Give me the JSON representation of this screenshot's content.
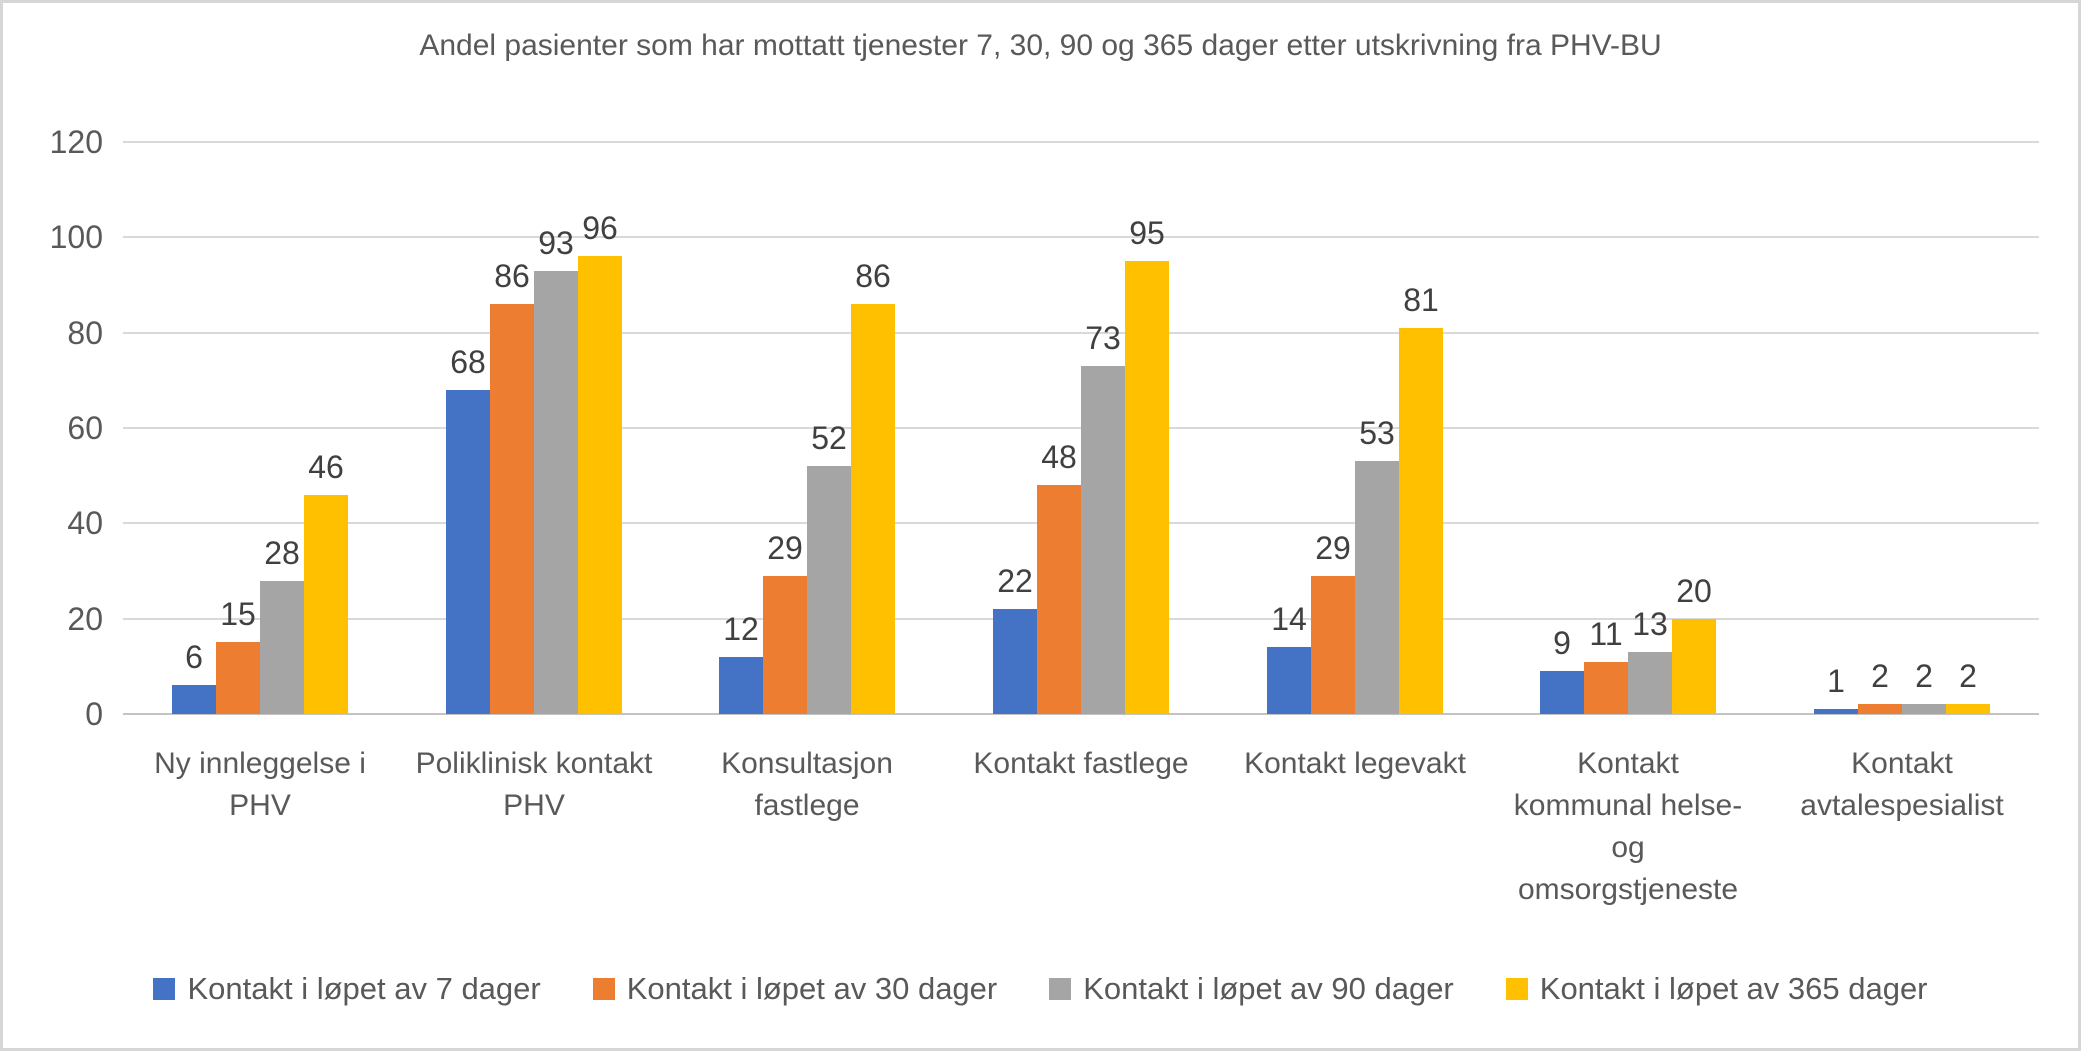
{
  "chart_data": {
    "type": "bar",
    "title": "Andel pasienter som har mottatt tjenester 7, 30, 90 og 365 dager etter utskrivning fra PHV-BU",
    "categories": [
      "Ny innleggelse i\nPHV",
      "Poliklinisk kontakt\nPHV",
      "Konsultasjon\nfastlege",
      "Kontakt fastlege",
      "Kontakt legevakt",
      "Kontakt\nkommunal helse-\nog\nomsorgstjeneste",
      "Kontakt\navtalespesialist"
    ],
    "series": [
      {
        "name": "Kontakt i løpet av 7 dager",
        "color": "#4472C4",
        "values": [
          6,
          68,
          12,
          22,
          14,
          9,
          1
        ]
      },
      {
        "name": "Kontakt i løpet av 30 dager",
        "color": "#ED7D31",
        "values": [
          15,
          86,
          29,
          48,
          29,
          11,
          2
        ]
      },
      {
        "name": "Kontakt i løpet av 90 dager",
        "color": "#A5A5A5",
        "values": [
          28,
          93,
          52,
          73,
          53,
          13,
          2
        ]
      },
      {
        "name": "Kontakt i løpet av 365 dager",
        "color": "#FFC000",
        "values": [
          46,
          96,
          86,
          95,
          81,
          20,
          2
        ]
      }
    ],
    "ylim": [
      0,
      120
    ],
    "yticks": [
      0,
      20,
      40,
      60,
      80,
      100,
      120
    ],
    "grid": true,
    "data_labels": true,
    "legend_position": "bottom",
    "xlabel": "",
    "ylabel": "",
    "text_color": "#595959",
    "gridline_color": "#d9d9d9"
  }
}
